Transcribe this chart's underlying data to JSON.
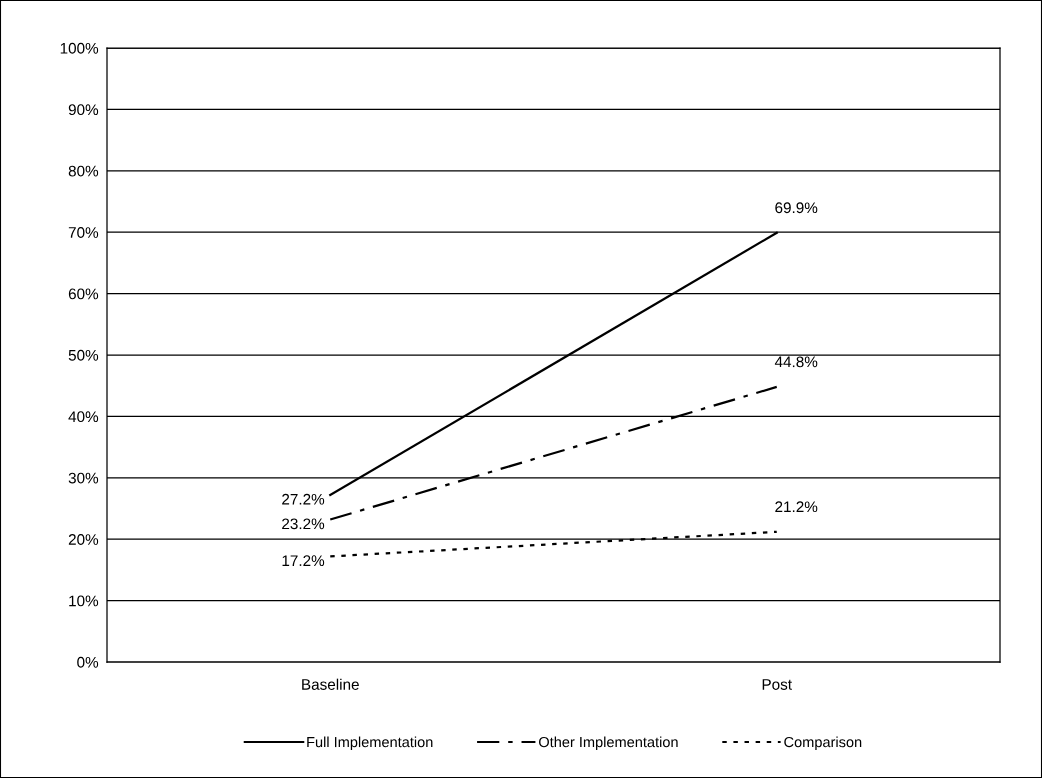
{
  "chart_data": {
    "type": "line",
    "categories": [
      "Baseline",
      "Post"
    ],
    "series": [
      {
        "name": "Full Implementation",
        "color": "#000000",
        "line_style": "solid",
        "values": [
          27.2,
          69.9
        ],
        "value_labels": [
          "27.2%",
          "69.9%"
        ]
      },
      {
        "name": "Other Implementation",
        "color": "#000000",
        "line_style": "dashdot",
        "values": [
          23.2,
          44.8
        ],
        "value_labels": [
          "23.2%",
          "44.8%"
        ]
      },
      {
        "name": "Comparison",
        "color": "#000000",
        "line_style": "dotted",
        "values": [
          17.2,
          21.2
        ],
        "value_labels": [
          "17.2%",
          "21.2%"
        ]
      }
    ],
    "ylim": [
      0,
      100
    ],
    "yticks": [
      {
        "value": 0,
        "label": "0%"
      },
      {
        "value": 10,
        "label": "10%"
      },
      {
        "value": 20,
        "label": "20%"
      },
      {
        "value": 30,
        "label": "30%"
      },
      {
        "value": 40,
        "label": "40%"
      },
      {
        "value": 50,
        "label": "50%"
      },
      {
        "value": 60,
        "label": "60%"
      },
      {
        "value": 70,
        "label": "70%"
      },
      {
        "value": 80,
        "label": "80%"
      },
      {
        "value": 90,
        "label": "90%"
      },
      {
        "value": 100,
        "label": "100%"
      }
    ],
    "grid": "y",
    "legend": "bottom",
    "marker": "none"
  }
}
